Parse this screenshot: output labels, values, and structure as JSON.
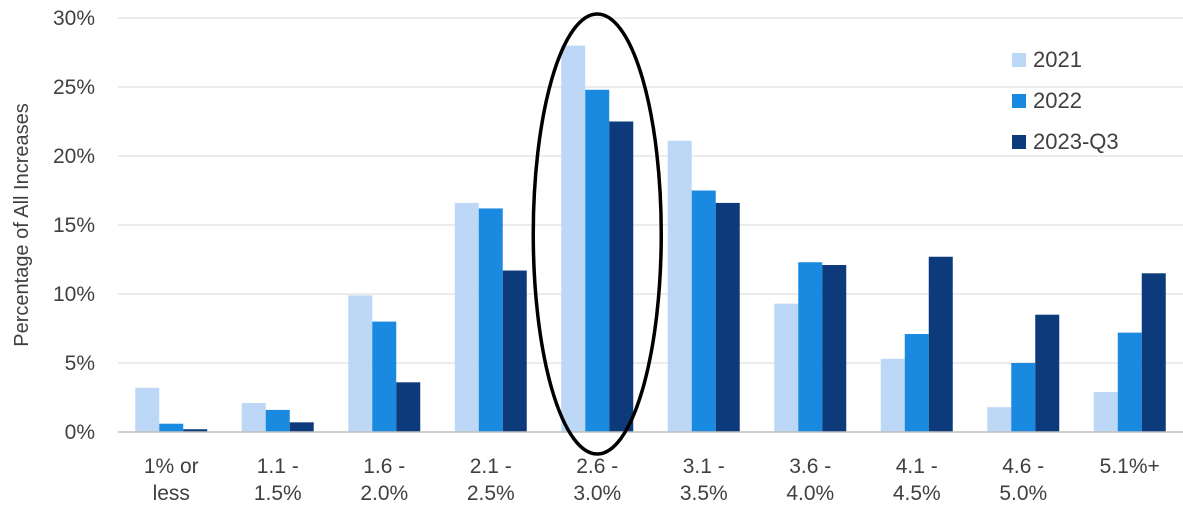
{
  "chart_data": {
    "type": "bar",
    "title": "",
    "xlabel": "",
    "ylabel": "Percentage of All Increases",
    "ylim": [
      0,
      30
    ],
    "yticks": [
      0,
      5,
      10,
      15,
      20,
      25,
      30
    ],
    "ytick_labels": [
      "0%",
      "5%",
      "10%",
      "15%",
      "20%",
      "25%",
      "30%"
    ],
    "categories": [
      [
        "1% or",
        "less"
      ],
      [
        "1.1 -",
        "1.5%"
      ],
      [
        "1.6 -",
        "2.0%"
      ],
      [
        "2.1 -",
        "2.5%"
      ],
      [
        "2.6 -",
        "3.0%"
      ],
      [
        "3.1 -",
        "3.5%"
      ],
      [
        "3.6 -",
        "4.0%"
      ],
      [
        "4.1 -",
        "4.5%"
      ],
      [
        "4.6 -",
        "5.0%"
      ],
      [
        "5.1%+"
      ]
    ],
    "series": [
      {
        "name": "2021",
        "color": "#bdd7f7",
        "values": [
          3.2,
          2.1,
          9.9,
          16.6,
          28.0,
          21.1,
          9.3,
          5.3,
          1.8,
          2.9
        ]
      },
      {
        "name": "2022",
        "color": "#1a8ae0",
        "values": [
          0.6,
          1.6,
          8.0,
          16.2,
          24.8,
          17.5,
          12.3,
          7.1,
          5.0,
          7.2
        ]
      },
      {
        "name": "2023-Q3",
        "color": "#0d3a7a",
        "values": [
          0.2,
          0.7,
          3.6,
          11.7,
          22.5,
          16.6,
          12.1,
          12.7,
          8.5,
          11.5
        ]
      }
    ],
    "grid": true,
    "legend_position": "top-right",
    "annotation": "ellipse highlighting the 2.6 - 3.0% category"
  }
}
